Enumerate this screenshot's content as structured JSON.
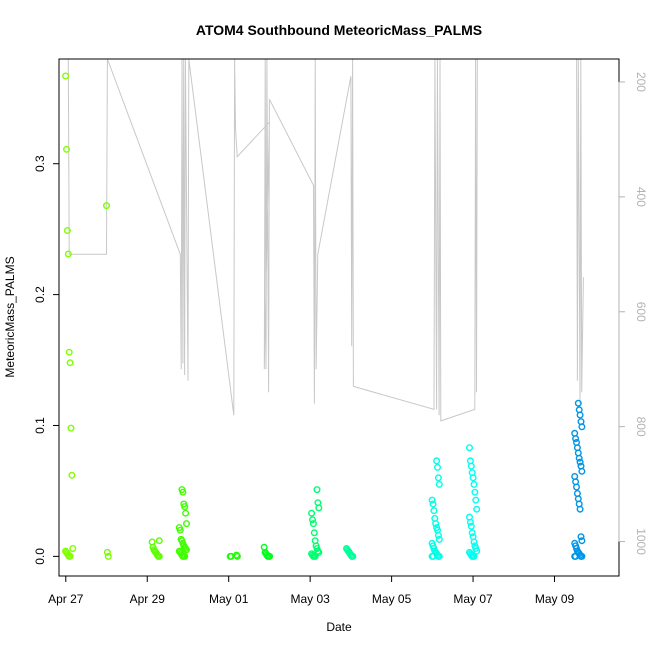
{
  "chart_data": {
    "type": "scatter",
    "title": "ATOM4 Southbound MeteoricMass_PALMS",
    "xlabel": "Date",
    "ylabel": "MeteoricMass_PALMS",
    "xlim": [
      "2018-04-26T20:00",
      "2018-05-10T14:00"
    ],
    "ylim": [
      -0.015,
      0.38
    ],
    "x_ticks": [
      {
        "date": "2018-04-27",
        "label": "Apr 27"
      },
      {
        "date": "2018-04-29",
        "label": "Apr 29"
      },
      {
        "date": "2018-05-01",
        "label": "May 01"
      },
      {
        "date": "2018-05-03",
        "label": "May 03"
      },
      {
        "date": "2018-05-05",
        "label": "May 05"
      },
      {
        "date": "2018-05-07",
        "label": "May 07"
      },
      {
        "date": "2018-05-09",
        "label": "May 09"
      }
    ],
    "y_ticks": [
      0.0,
      0.1,
      0.2,
      0.3
    ],
    "y_tick_labels": [
      "0.0",
      "0.1",
      "0.2",
      "0.3"
    ],
    "right_axis": {
      "ylim": [
        1060,
        160
      ],
      "ticks": [
        200,
        400,
        600,
        800,
        1000
      ],
      "tick_labels": [
        "200",
        "400",
        "600",
        "800",
        "1000"
      ],
      "color": "#b3b3b3"
    },
    "grid": false,
    "legend": "none",
    "point_style": "open-circle",
    "clusters": [
      {
        "date": "2018-04-27T02:00",
        "color": "#80ff00",
        "values": [
          0.367,
          0.311,
          0.249,
          0.231,
          0.156,
          0.148,
          0.098,
          0.062,
          0.006,
          0.004,
          0.003,
          0.002,
          0.001,
          0.0,
          0.0
        ]
      },
      {
        "date": "2018-04-28T00:00",
        "color": "#78ff00",
        "values": [
          0.268,
          0.003,
          0.0
        ]
      },
      {
        "date": "2018-04-29T05:00",
        "color": "#5cff00",
        "values": [
          0.012,
          0.011,
          0.007,
          0.005,
          0.004,
          0.003,
          0.002,
          0.001,
          0.0,
          0.0
        ]
      },
      {
        "date": "2018-04-29T21:00",
        "color": "#40ff00",
        "values": [
          0.051,
          0.049,
          0.04,
          0.038,
          0.033,
          0.025,
          0.022,
          0.02,
          0.013,
          0.012,
          0.01,
          0.008,
          0.007,
          0.006,
          0.005,
          0.004,
          0.003,
          0.002,
          0.001,
          0.0,
          0.0,
          0.0
        ]
      },
      {
        "date": "2018-05-01T03:00",
        "color": "#1aff00",
        "values": [
          0.001,
          0.0,
          0.0,
          0.0
        ]
      },
      {
        "date": "2018-05-01T22:00",
        "color": "#00ff1a",
        "values": [
          0.007,
          0.003,
          0.002,
          0.001,
          0.0,
          0.0,
          0.0
        ]
      },
      {
        "date": "2018-05-03T03:00",
        "color": "#00ff70",
        "values": [
          0.051,
          0.041,
          0.037,
          0.033,
          0.028,
          0.025,
          0.018,
          0.012,
          0.008,
          0.006,
          0.004,
          0.003,
          0.002,
          0.001,
          0.0,
          0.0,
          0.0
        ]
      },
      {
        "date": "2018-05-03T23:00",
        "color": "#00ff9a",
        "values": [
          0.006,
          0.005,
          0.004,
          0.003,
          0.002,
          0.001,
          0.0,
          0.0
        ]
      },
      {
        "date": "2018-05-06T02:00",
        "color": "#00ffe6",
        "values": [
          0.073,
          0.068,
          0.06,
          0.055,
          0.043,
          0.04,
          0.035,
          0.029,
          0.025,
          0.022,
          0.02,
          0.016,
          0.013,
          0.01,
          0.008,
          0.006,
          0.004,
          0.003,
          0.002,
          0.001,
          0.0,
          0.0,
          0.0,
          0.0
        ]
      },
      {
        "date": "2018-05-07T00:00",
        "color": "#00fff2",
        "values": [
          0.083,
          0.073,
          0.069,
          0.064,
          0.06,
          0.055,
          0.049,
          0.043,
          0.036,
          0.03,
          0.026,
          0.023,
          0.018,
          0.015,
          0.011,
          0.008,
          0.006,
          0.004,
          0.003,
          0.002,
          0.001,
          0.0,
          0.0,
          0.0
        ]
      },
      {
        "date": "2018-05-09T14:00",
        "color": "#0096e6",
        "values": [
          0.117,
          0.112,
          0.108,
          0.103,
          0.099,
          0.094,
          0.09,
          0.087,
          0.083,
          0.079,
          0.075,
          0.072,
          0.069,
          0.065,
          0.061,
          0.057,
          0.053,
          0.048,
          0.044,
          0.04,
          0.036,
          0.015,
          0.012,
          0.01,
          0.008,
          0.006,
          0.004,
          0.003,
          0.002,
          0.001,
          0.0,
          0.0,
          0.0,
          0.0
        ]
      }
    ],
    "altitude_line": {
      "axis": "right",
      "color": "#c8c8c8",
      "points": [
        [
          "2018-04-27T01:30",
          160
        ],
        [
          "2018-04-27T02:00",
          500
        ],
        [
          "2018-04-28T00:00",
          500
        ],
        [
          "2018-04-28T00:30",
          160
        ],
        [
          "2018-04-29T19:30",
          500
        ],
        [
          "2018-04-29T20:00",
          700
        ],
        [
          "2018-04-29T20:30",
          160
        ],
        [
          "2018-04-29T21:00",
          690
        ],
        [
          "2018-04-29T21:30",
          160
        ],
        [
          "2018-04-29T22:00",
          710
        ],
        [
          "2018-04-29T22:30",
          160
        ],
        [
          "2018-04-30T00:00",
          720
        ],
        [
          "2018-04-30T00:30",
          160
        ],
        [
          "2018-05-01T03:00",
          780
        ],
        [
          "2018-05-01T03:30",
          160
        ],
        [
          "2018-05-01T04:00",
          280
        ],
        [
          "2018-05-01T05:00",
          330
        ],
        [
          "2018-05-02T00:00",
          270
        ],
        [
          "2018-05-01T21:00",
          700
        ],
        [
          "2018-05-01T21:30",
          160
        ],
        [
          "2018-05-01T22:00",
          700
        ],
        [
          "2018-05-01T22:30",
          160
        ],
        [
          "2018-05-01T23:30",
          740
        ],
        [
          "2018-05-02T00:00",
          230
        ],
        [
          "2018-05-03T02:00",
          380
        ],
        [
          "2018-05-03T02:30",
          760
        ],
        [
          "2018-05-03T03:00",
          160
        ],
        [
          "2018-05-03T03:30",
          700
        ],
        [
          "2018-05-03T04:30",
          500
        ],
        [
          "2018-05-04T00:00",
          190
        ],
        [
          "2018-05-04T00:30",
          660
        ],
        [
          "2018-05-04T01:00",
          160
        ],
        [
          "2018-05-04T01:30",
          730
        ],
        [
          "2018-05-06T01:00",
          770
        ],
        [
          "2018-05-06T01:30",
          160
        ],
        [
          "2018-05-06T02:30",
          770
        ],
        [
          "2018-05-06T03:00",
          160
        ],
        [
          "2018-05-06T04:00",
          780
        ],
        [
          "2018-05-06T04:30",
          160
        ],
        [
          "2018-05-06T05:00",
          790
        ],
        [
          "2018-05-07T01:00",
          770
        ],
        [
          "2018-05-07T01:30",
          160
        ],
        [
          "2018-05-07T02:00",
          740
        ],
        [
          "2018-05-07T02:30",
          160
        ],
        [
          "2018-05-07T23:00",
          160
        ],
        [
          "2018-05-09T13:00",
          160
        ],
        [
          "2018-05-09T13:30",
          720
        ],
        [
          "2018-05-09T14:00",
          160
        ],
        [
          "2018-05-09T15:00",
          760
        ],
        [
          "2018-05-09T15:30",
          160
        ],
        [
          "2018-05-09T16:00",
          740
        ],
        [
          "2018-05-09T17:00",
          540
        ]
      ]
    }
  }
}
